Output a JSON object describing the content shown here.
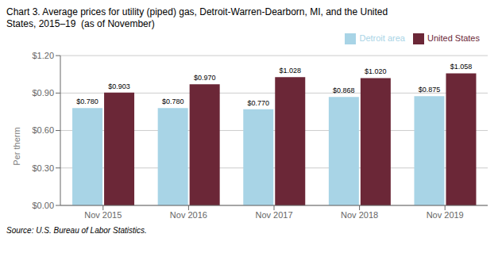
{
  "chart_data": {
    "type": "bar",
    "title": "Chart 3. Average prices for utility (piped) gas, Detroit-Warren-Dearborn, MI, and the United",
    "subtitle": "States, 2015–19  (as of November)",
    "y_label": "Per therm",
    "source": "Source: U.S. Bureau of Labor Statistics.",
    "categories": [
      "Nov 2015",
      "Nov 2016",
      "Nov 2017",
      "Nov 2018",
      "Nov 2019"
    ],
    "series": [
      {
        "name": "Detroit area",
        "color": "#a8d4e6",
        "values": [
          0.78,
          0.78,
          0.77,
          0.868,
          0.875
        ],
        "value_labels": [
          "$0.780",
          "$0.780",
          "$0.770",
          "$0.868",
          "$0.875"
        ]
      },
      {
        "name": "United States",
        "color": "#6B2737",
        "values": [
          0.903,
          0.97,
          1.028,
          1.02,
          1.058
        ],
        "value_labels": [
          "$0.903",
          "$0.970",
          "$1.028",
          "$1.020",
          "$1.058"
        ]
      }
    ],
    "ylim": [
      0,
      1.2
    ],
    "yticks": [
      {
        "value": 0.0,
        "label": "$0.00"
      },
      {
        "value": 0.3,
        "label": "$0.30"
      },
      {
        "value": 0.6,
        "label": "$0.60"
      },
      {
        "value": 0.9,
        "label": "$0.90"
      },
      {
        "value": 1.2,
        "label": "$1.20"
      }
    ],
    "grid": true,
    "legend": "top-right",
    "data_labels": true
  }
}
